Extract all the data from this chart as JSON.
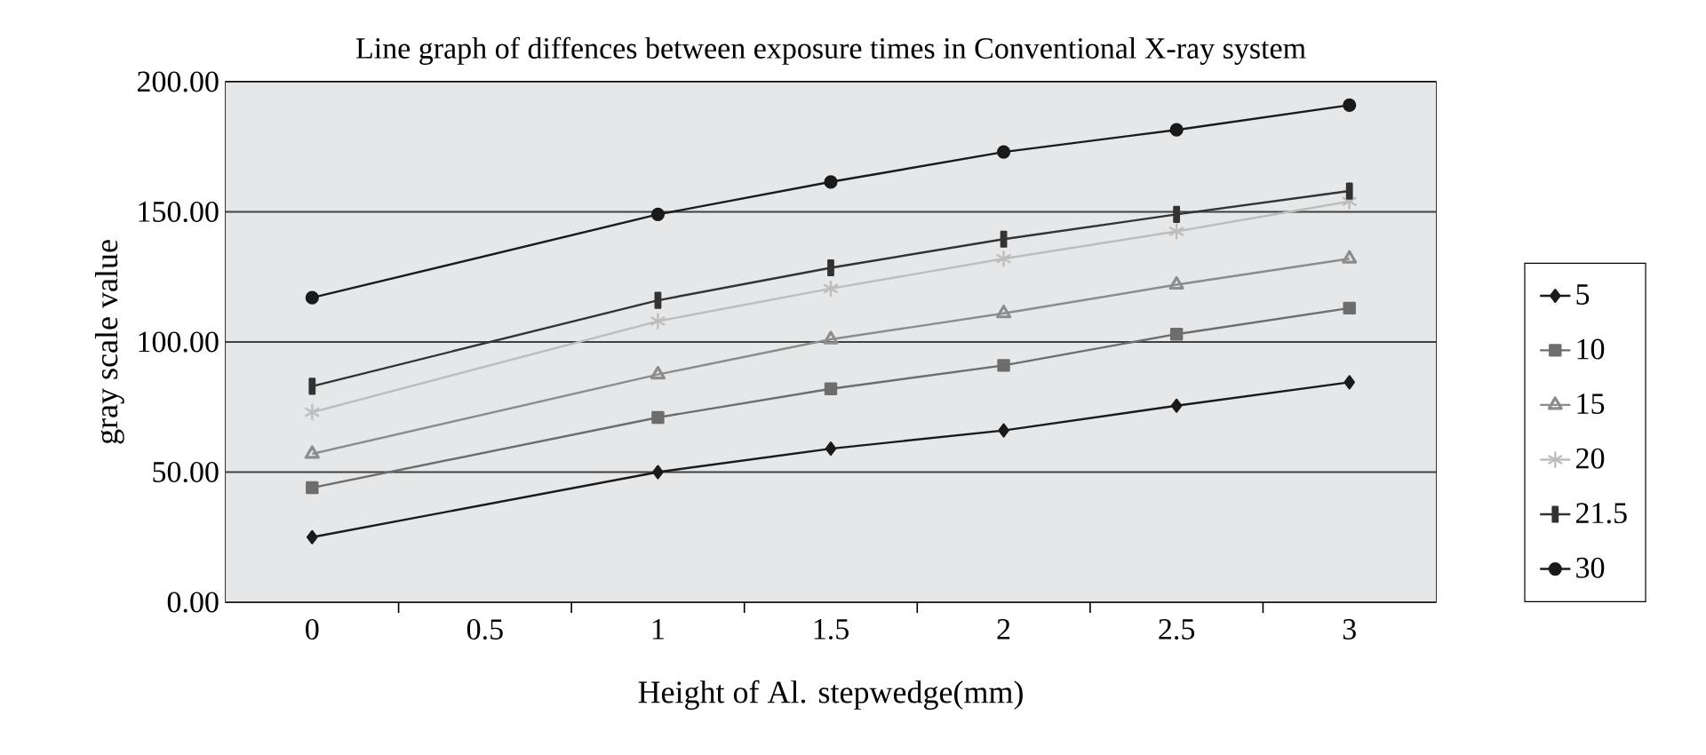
{
  "chart_data": {
    "type": "line",
    "title": "Line graph of diffences between exposure times in Conventional X-ray system",
    "xlabel": "Height of Al. stepwedge(mm)",
    "ylabel": "gray scale value",
    "x": [
      0,
      1,
      1.5,
      2,
      2.5,
      3
    ],
    "series": [
      {
        "name": "5",
        "color": "#1a1a1a",
        "marker": "diamond",
        "values": [
          25,
          50,
          59,
          66,
          75.5,
          84.5
        ]
      },
      {
        "name": "10",
        "color": "#6d6d6d",
        "marker": "square",
        "values": [
          44,
          71,
          82,
          91,
          103,
          113
        ]
      },
      {
        "name": "15",
        "color": "#8c8c8c",
        "marker": "triangle",
        "values": [
          57,
          87.5,
          101,
          111,
          122,
          132
        ]
      },
      {
        "name": "20",
        "color": "#bdbdbd",
        "marker": "cross",
        "values": [
          73,
          108,
          120.5,
          132,
          142.5,
          154
        ]
      },
      {
        "name": "21.5",
        "color": "#333333",
        "marker": "square",
        "values": [
          83,
          116,
          128.5,
          139.5,
          149,
          158
        ]
      },
      {
        "name": "30",
        "color": "#1a1a1a",
        "marker": "circle",
        "values": [
          117,
          149,
          161.5,
          173,
          181.5,
          191
        ]
      }
    ],
    "xlim": [
      -0.25,
      3.25
    ],
    "xticks": [
      0,
      0.5,
      1,
      1.5,
      2,
      2.5,
      3,
      {
        "value": 0.25,
        "label": null
      },
      {
        "value": 0.75,
        "label": null
      },
      {
        "value": 1.25,
        "label": null
      },
      {
        "value": 1.75,
        "label": null
      },
      {
        "value": 2.25,
        "label": null
      },
      {
        "value": 2.75,
        "label": null
      }
    ],
    "ylim": [
      0,
      200
    ],
    "yticks": [
      {
        "value": 0,
        "label": "0.00"
      },
      {
        "value": 50,
        "label": "50.00"
      },
      {
        "value": 100,
        "label": "100.00"
      },
      {
        "value": 150,
        "label": "150.00"
      },
      {
        "value": 200,
        "label": "200.00"
      }
    ],
    "grid": "y",
    "legend": "right",
    "line_style": "solid"
  }
}
